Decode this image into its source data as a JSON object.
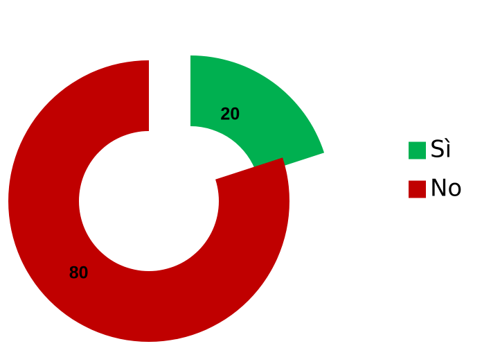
{
  "chart_data": {
    "type": "pie",
    "variant": "donut-exploded",
    "title": "",
    "categories": [
      "Sì",
      "No"
    ],
    "values": [
      20,
      80
    ],
    "colors": [
      "#00B050",
      "#C00000"
    ],
    "data_labels": [
      "20",
      "80"
    ],
    "legend": {
      "placement": "right",
      "entries": [
        "Sì",
        "No"
      ]
    }
  }
}
